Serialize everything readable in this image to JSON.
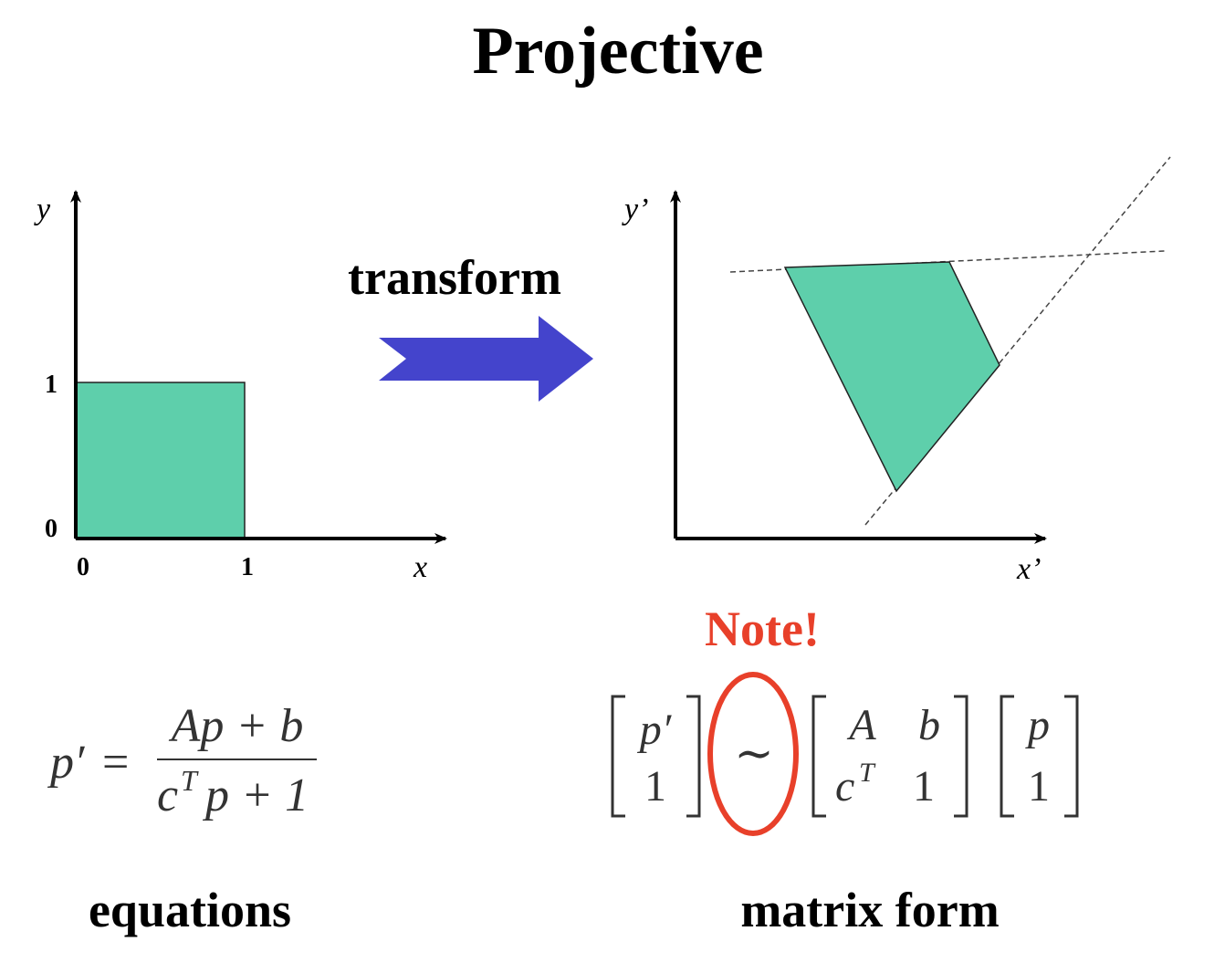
{
  "title": "Projective",
  "transform_label": "transform",
  "note_label": "Note!",
  "equations_label": "equations",
  "matrix_label": "matrix form",
  "colors": {
    "shape_fill": "#5ecfab",
    "arrow_fill": "#4444cc",
    "note_red": "#e8402a",
    "axis": "#000000"
  },
  "left_plot": {
    "x_axis_label": "x",
    "y_axis_label": "y",
    "x_ticks": [
      "0",
      "1"
    ],
    "y_ticks": [
      "0",
      "1"
    ]
  },
  "right_plot": {
    "x_axis_label": "x’",
    "y_axis_label": "y’"
  },
  "equation": {
    "lhs": "p′",
    "equals": "=",
    "numerator": "Ap + b",
    "denominator_c": "c",
    "denominator_sup": "T",
    "denominator_rest": "p + 1"
  },
  "matrix": {
    "left_vector": [
      "p′",
      "1"
    ],
    "relation": "∼",
    "matrix_row1": [
      "A",
      "b"
    ],
    "matrix_row2_c": "c",
    "matrix_row2_sup": "T",
    "matrix_row2_last": "1",
    "right_vector": [
      "p",
      "1"
    ]
  },
  "icons": {
    "transform_arrow": "right-arrow-icon"
  }
}
